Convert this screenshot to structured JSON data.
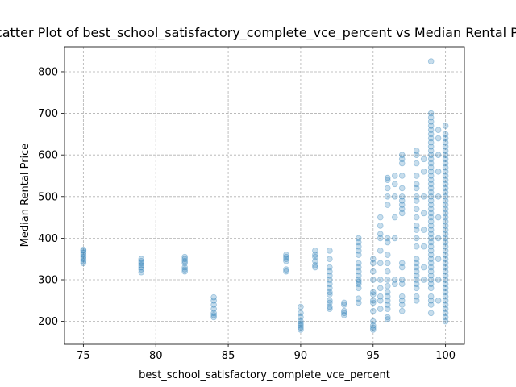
{
  "chart_data": {
    "type": "scatter",
    "title": "Scatter Plot of best_school_satisfactory_complete_vce_percent vs Median Rental Price",
    "xlabel": "best_school_satisfactory_complete_vce_percent",
    "ylabel": "Median Rental Price",
    "xlim": [
      73.7,
      101.3
    ],
    "ylim": [
      145,
      860
    ],
    "x_ticks": [
      75,
      80,
      85,
      90,
      95,
      100
    ],
    "y_ticks": [
      200,
      300,
      400,
      500,
      600,
      700,
      800
    ],
    "grid": true,
    "legend": "none",
    "marker_color": "#1f77b4",
    "marker_alpha": 0.25,
    "series": [
      {
        "points": [
          [
            75,
            340
          ],
          [
            75,
            345
          ],
          [
            75,
            350
          ],
          [
            75,
            355
          ],
          [
            75,
            360
          ],
          [
            75,
            365
          ],
          [
            75,
            370
          ],
          [
            75,
            372
          ],
          [
            79,
            318
          ],
          [
            79,
            325
          ],
          [
            79,
            330
          ],
          [
            79,
            335
          ],
          [
            79,
            340
          ],
          [
            79,
            345
          ],
          [
            79,
            350
          ],
          [
            82,
            320
          ],
          [
            82,
            325
          ],
          [
            82,
            330
          ],
          [
            82,
            340
          ],
          [
            82,
            345
          ],
          [
            82,
            350
          ],
          [
            82,
            355
          ],
          [
            84,
            210
          ],
          [
            84,
            215
          ],
          [
            84,
            220
          ],
          [
            84,
            230
          ],
          [
            84,
            240
          ],
          [
            84,
            250
          ],
          [
            84,
            258
          ],
          [
            89,
            320
          ],
          [
            89,
            325
          ],
          [
            89,
            345
          ],
          [
            89,
            350
          ],
          [
            89,
            355
          ],
          [
            89,
            360
          ],
          [
            90,
            180
          ],
          [
            90,
            185
          ],
          [
            90,
            190
          ],
          [
            90,
            195
          ],
          [
            90,
            200
          ],
          [
            90,
            210
          ],
          [
            90,
            220
          ],
          [
            90,
            235
          ],
          [
            91,
            330
          ],
          [
            91,
            335
          ],
          [
            91,
            345
          ],
          [
            91,
            355
          ],
          [
            91,
            360
          ],
          [
            91,
            370
          ],
          [
            92,
            230
          ],
          [
            92,
            235
          ],
          [
            92,
            245
          ],
          [
            92,
            250
          ],
          [
            92,
            265
          ],
          [
            92,
            270
          ],
          [
            92,
            280
          ],
          [
            92,
            290
          ],
          [
            92,
            300
          ],
          [
            92,
            310
          ],
          [
            92,
            320
          ],
          [
            92,
            330
          ],
          [
            92,
            350
          ],
          [
            92,
            370
          ],
          [
            93,
            215
          ],
          [
            93,
            220
          ],
          [
            93,
            225
          ],
          [
            93,
            240
          ],
          [
            93,
            245
          ],
          [
            94,
            245
          ],
          [
            94,
            255
          ],
          [
            94,
            280
          ],
          [
            94,
            290
          ],
          [
            94,
            295
          ],
          [
            94,
            300
          ],
          [
            94,
            310
          ],
          [
            94,
            320
          ],
          [
            94,
            330
          ],
          [
            94,
            340
          ],
          [
            94,
            360
          ],
          [
            94,
            370
          ],
          [
            94,
            380
          ],
          [
            94,
            390
          ],
          [
            94,
            400
          ],
          [
            95,
            180
          ],
          [
            95,
            185
          ],
          [
            95,
            190
          ],
          [
            95,
            200
          ],
          [
            95,
            225
          ],
          [
            95,
            245
          ],
          [
            95,
            250
          ],
          [
            95,
            265
          ],
          [
            95,
            270
          ],
          [
            95,
            300
          ],
          [
            95,
            320
          ],
          [
            95,
            340
          ],
          [
            95,
            350
          ],
          [
            95.5,
            230
          ],
          [
            95.5,
            250
          ],
          [
            95.5,
            260
          ],
          [
            95.5,
            280
          ],
          [
            95.5,
            300
          ],
          [
            95.5,
            340
          ],
          [
            95.5,
            370
          ],
          [
            95.5,
            400
          ],
          [
            95.5,
            410
          ],
          [
            95.5,
            430
          ],
          [
            95.5,
            450
          ],
          [
            96,
            205
          ],
          [
            96,
            210
          ],
          [
            96,
            230
          ],
          [
            96,
            240
          ],
          [
            96,
            250
          ],
          [
            96,
            260
          ],
          [
            96,
            270
          ],
          [
            96,
            285
          ],
          [
            96,
            300
          ],
          [
            96,
            320
          ],
          [
            96,
            340
          ],
          [
            96,
            360
          ],
          [
            96,
            390
          ],
          [
            96,
            400
          ],
          [
            96,
            480
          ],
          [
            96,
            500
          ],
          [
            96,
            520
          ],
          [
            96,
            540
          ],
          [
            96,
            545
          ],
          [
            96.5,
            290
          ],
          [
            96.5,
            300
          ],
          [
            96.5,
            400
          ],
          [
            96.5,
            450
          ],
          [
            96.5,
            500
          ],
          [
            96.5,
            530
          ],
          [
            96.5,
            550
          ],
          [
            97,
            225
          ],
          [
            97,
            240
          ],
          [
            97,
            250
          ],
          [
            97,
            260
          ],
          [
            97,
            290
          ],
          [
            97,
            300
          ],
          [
            97,
            330
          ],
          [
            97,
            340
          ],
          [
            97,
            460
          ],
          [
            97,
            470
          ],
          [
            97,
            480
          ],
          [
            97,
            490
          ],
          [
            97,
            500
          ],
          [
            97,
            520
          ],
          [
            97,
            550
          ],
          [
            97,
            580
          ],
          [
            97,
            590
          ],
          [
            97,
            600
          ],
          [
            98,
            250
          ],
          [
            98,
            260
          ],
          [
            98,
            280
          ],
          [
            98,
            290
          ],
          [
            98,
            300
          ],
          [
            98,
            310
          ],
          [
            98,
            320
          ],
          [
            98,
            330
          ],
          [
            98,
            340
          ],
          [
            98,
            350
          ],
          [
            98,
            380
          ],
          [
            98,
            400
          ],
          [
            98,
            420
          ],
          [
            98,
            430
          ],
          [
            98,
            450
          ],
          [
            98,
            470
          ],
          [
            98,
            490
          ],
          [
            98,
            500
          ],
          [
            98,
            520
          ],
          [
            98,
            530
          ],
          [
            98,
            550
          ],
          [
            98,
            580
          ],
          [
            98,
            600
          ],
          [
            98,
            610
          ],
          [
            98.5,
            300
          ],
          [
            98.5,
            330
          ],
          [
            98.5,
            380
          ],
          [
            98.5,
            420
          ],
          [
            98.5,
            460
          ],
          [
            98.5,
            500
          ],
          [
            98.5,
            560
          ],
          [
            98.5,
            590
          ],
          [
            99,
            220
          ],
          [
            99,
            240
          ],
          [
            99,
            250
          ],
          [
            99,
            260
          ],
          [
            99,
            280
          ],
          [
            99,
            290
          ],
          [
            99,
            300
          ],
          [
            99,
            310
          ],
          [
            99,
            320
          ],
          [
            99,
            330
          ],
          [
            99,
            340
          ],
          [
            99,
            350
          ],
          [
            99,
            360
          ],
          [
            99,
            370
          ],
          [
            99,
            380
          ],
          [
            99,
            390
          ],
          [
            99,
            400
          ],
          [
            99,
            410
          ],
          [
            99,
            420
          ],
          [
            99,
            430
          ],
          [
            99,
            440
          ],
          [
            99,
            450
          ],
          [
            99,
            460
          ],
          [
            99,
            470
          ],
          [
            99,
            480
          ],
          [
            99,
            490
          ],
          [
            99,
            500
          ],
          [
            99,
            510
          ],
          [
            99,
            520
          ],
          [
            99,
            530
          ],
          [
            99,
            540
          ],
          [
            99,
            550
          ],
          [
            99,
            560
          ],
          [
            99,
            570
          ],
          [
            99,
            580
          ],
          [
            99,
            590
          ],
          [
            99,
            600
          ],
          [
            99,
            610
          ],
          [
            99,
            620
          ],
          [
            99,
            630
          ],
          [
            99,
            640
          ],
          [
            99,
            650
          ],
          [
            99,
            660
          ],
          [
            99,
            670
          ],
          [
            99,
            680
          ],
          [
            99,
            690
          ],
          [
            99,
            700
          ],
          [
            99,
            825
          ],
          [
            99.5,
            250
          ],
          [
            99.5,
            300
          ],
          [
            99.5,
            350
          ],
          [
            99.5,
            400
          ],
          [
            99.5,
            450
          ],
          [
            99.5,
            500
          ],
          [
            99.5,
            560
          ],
          [
            99.5,
            600
          ],
          [
            99.5,
            640
          ],
          [
            99.5,
            660
          ],
          [
            100,
            200
          ],
          [
            100,
            210
          ],
          [
            100,
            220
          ],
          [
            100,
            230
          ],
          [
            100,
            240
          ],
          [
            100,
            250
          ],
          [
            100,
            260
          ],
          [
            100,
            270
          ],
          [
            100,
            280
          ],
          [
            100,
            290
          ],
          [
            100,
            300
          ],
          [
            100,
            310
          ],
          [
            100,
            320
          ],
          [
            100,
            330
          ],
          [
            100,
            340
          ],
          [
            100,
            350
          ],
          [
            100,
            360
          ],
          [
            100,
            370
          ],
          [
            100,
            380
          ],
          [
            100,
            390
          ],
          [
            100,
            400
          ],
          [
            100,
            410
          ],
          [
            100,
            420
          ],
          [
            100,
            430
          ],
          [
            100,
            440
          ],
          [
            100,
            450
          ],
          [
            100,
            460
          ],
          [
            100,
            470
          ],
          [
            100,
            480
          ],
          [
            100,
            490
          ],
          [
            100,
            500
          ],
          [
            100,
            510
          ],
          [
            100,
            520
          ],
          [
            100,
            530
          ],
          [
            100,
            540
          ],
          [
            100,
            550
          ],
          [
            100,
            560
          ],
          [
            100,
            570
          ],
          [
            100,
            580
          ],
          [
            100,
            590
          ],
          [
            100,
            600
          ],
          [
            100,
            610
          ],
          [
            100,
            620
          ],
          [
            100,
            630
          ],
          [
            100,
            640
          ],
          [
            100,
            650
          ],
          [
            100,
            670
          ]
        ]
      }
    ]
  }
}
